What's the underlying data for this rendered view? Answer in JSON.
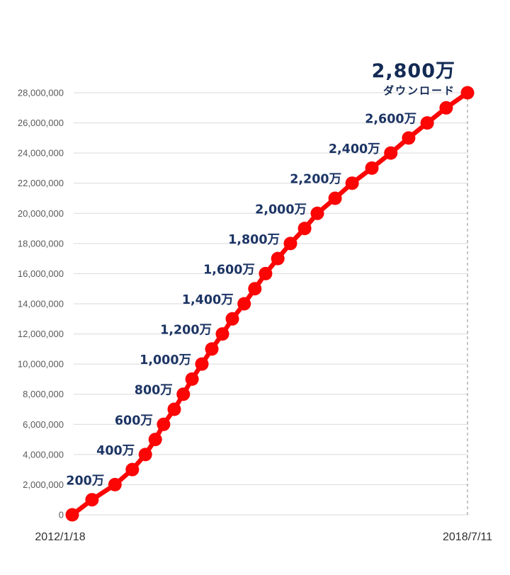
{
  "chart_data": {
    "type": "line",
    "title": "2,800万",
    "subtitle": "ダウンロード",
    "x_axis": {
      "start_label": "2012/1/18",
      "end_label": "2018/7/11"
    },
    "y_axis": {
      "min": 0,
      "max": 28000000,
      "tick_interval": 2000000,
      "tick_labels": [
        "0",
        "2,000,000",
        "4,000,000",
        "6,000,000",
        "8,000,000",
        "10,000,000",
        "12,000,000",
        "14,000,000",
        "16,000,000",
        "18,000,000",
        "20,000,000",
        "22,000,000",
        "24,000,000",
        "26,000,000",
        "28,000,000"
      ]
    },
    "grid": true,
    "legend": "none",
    "series": [
      {
        "name": "cumulative-downloads",
        "color": "#fb0505",
        "points": [
          {
            "t": 0.0,
            "value": 0
          },
          {
            "t": 0.05,
            "value": 1000000
          },
          {
            "t": 0.108,
            "value": 2000000
          },
          {
            "t": 0.152,
            "value": 3000000
          },
          {
            "t": 0.185,
            "value": 4000000
          },
          {
            "t": 0.21,
            "value": 5000000
          },
          {
            "t": 0.231,
            "value": 6000000
          },
          {
            "t": 0.258,
            "value": 7000000
          },
          {
            "t": 0.281,
            "value": 8000000
          },
          {
            "t": 0.303,
            "value": 9000000
          },
          {
            "t": 0.328,
            "value": 10000000
          },
          {
            "t": 0.353,
            "value": 11000000
          },
          {
            "t": 0.38,
            "value": 12000000
          },
          {
            "t": 0.405,
            "value": 13000000
          },
          {
            "t": 0.435,
            "value": 14000000
          },
          {
            "t": 0.462,
            "value": 15000000
          },
          {
            "t": 0.489,
            "value": 16000000
          },
          {
            "t": 0.52,
            "value": 17000000
          },
          {
            "t": 0.552,
            "value": 18000000
          },
          {
            "t": 0.588,
            "value": 19000000
          },
          {
            "t": 0.62,
            "value": 20000000
          },
          {
            "t": 0.665,
            "value": 21000000
          },
          {
            "t": 0.708,
            "value": 22000000
          },
          {
            "t": 0.758,
            "value": 23000000
          },
          {
            "t": 0.806,
            "value": 24000000
          },
          {
            "t": 0.851,
            "value": 25000000
          },
          {
            "t": 0.898,
            "value": 26000000
          },
          {
            "t": 0.946,
            "value": 27000000
          },
          {
            "t": 1.0,
            "value": 28000000
          }
        ]
      }
    ],
    "milestone_labels": [
      {
        "value": 2000000,
        "label": "200万"
      },
      {
        "value": 4000000,
        "label": "400万"
      },
      {
        "value": 6000000,
        "label": "600万"
      },
      {
        "value": 8000000,
        "label": "800万"
      },
      {
        "value": 10000000,
        "label": "1,000万"
      },
      {
        "value": 12000000,
        "label": "1,200万"
      },
      {
        "value": 14000000,
        "label": "1,400万"
      },
      {
        "value": 16000000,
        "label": "1,600万"
      },
      {
        "value": 18000000,
        "label": "1,800万"
      },
      {
        "value": 20000000,
        "label": "2,000万"
      },
      {
        "value": 22000000,
        "label": "2,200万"
      },
      {
        "value": 24000000,
        "label": "2,400万"
      },
      {
        "value": 26000000,
        "label": "2,600万"
      }
    ],
    "annotation": {
      "value": 28000000,
      "label": "2,800万",
      "sublabel": "ダウンロード"
    },
    "colors": {
      "line": "#fb0505",
      "marker": "#fb0505",
      "milestone_text": "#1d3565",
      "annotation_text": "#132a54",
      "ytick_text": "#595959",
      "date_text": "#303030",
      "gridline": "#d9d9d9",
      "dashed_guide": "#a6a6a6",
      "background": "#ffffff"
    }
  }
}
